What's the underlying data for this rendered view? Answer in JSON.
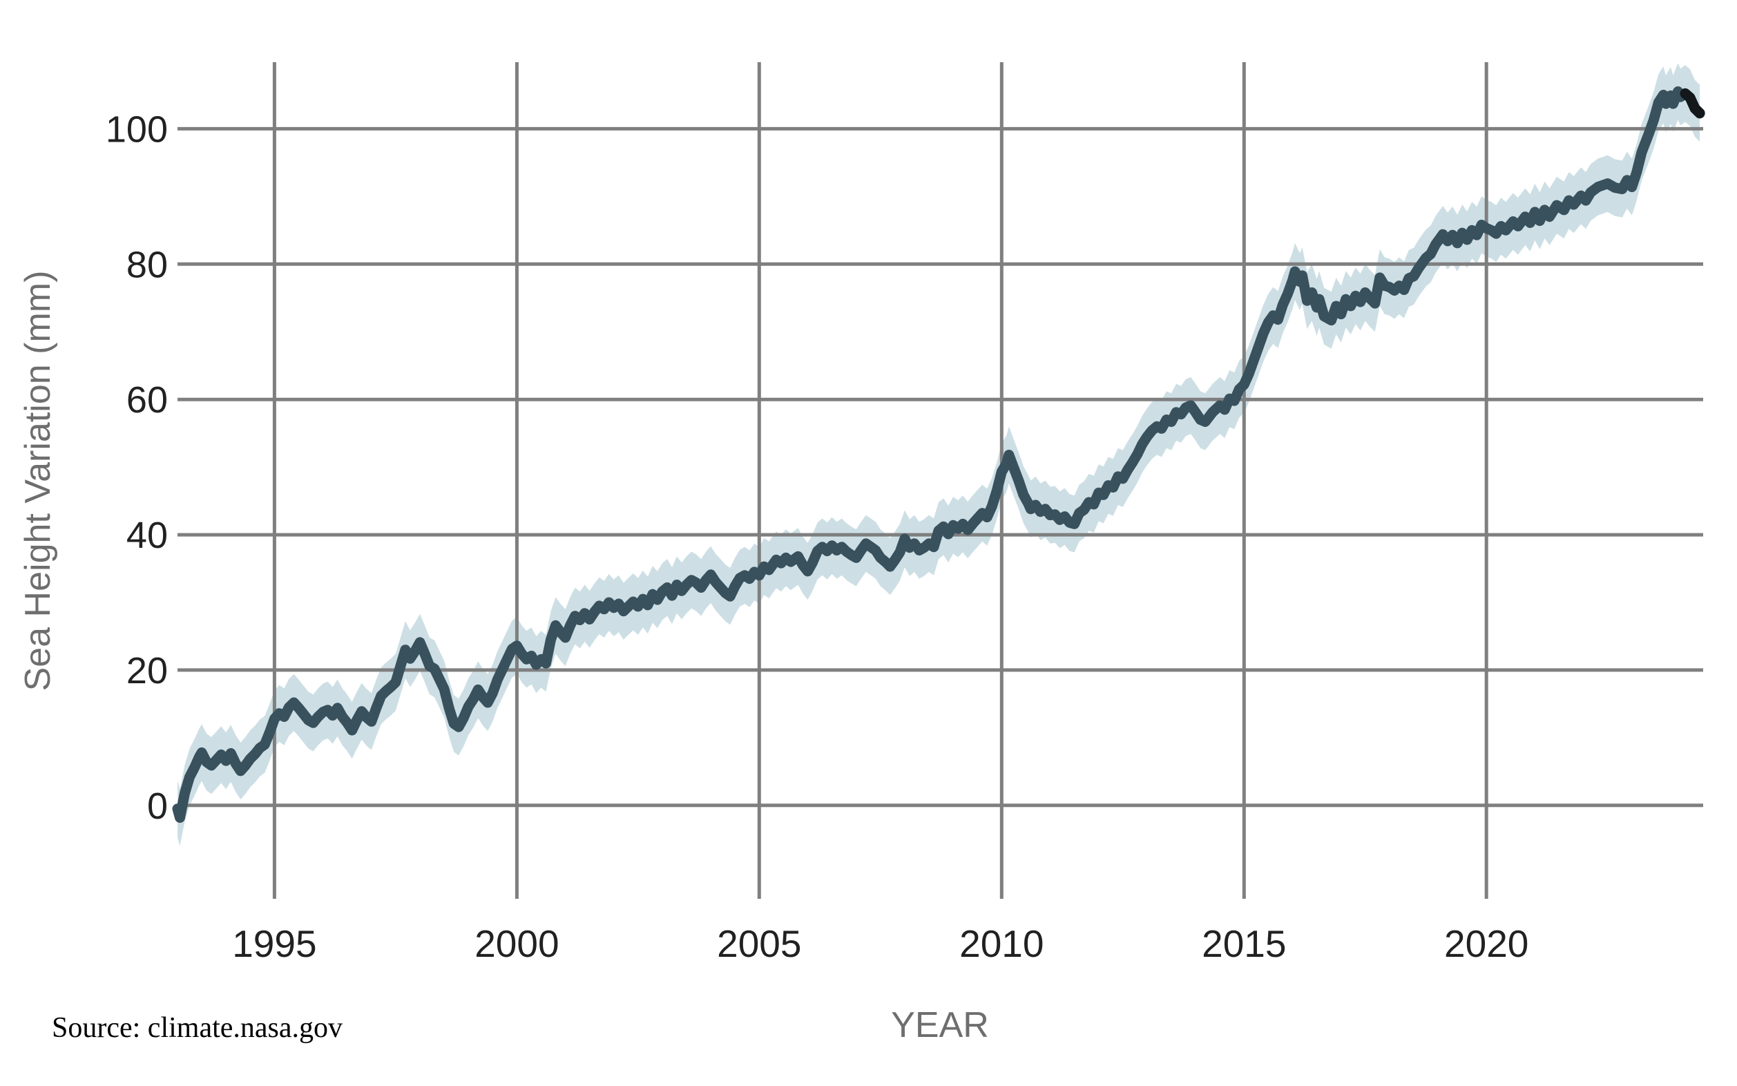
{
  "chart_data": {
    "type": "line",
    "title": "",
    "xlabel": "YEAR",
    "ylabel": "Sea Height Variation (mm)",
    "source_text": "Source: climate.nasa.gov",
    "grid": true,
    "legend": "none",
    "xlim": [
      1993.0,
      2024.47
    ],
    "ylim": [
      -13.8,
      109.84
    ],
    "x_ticks": [
      1995,
      2000,
      2005,
      2010,
      2015,
      2020
    ],
    "x_tick_labels": [
      "1995",
      "2000",
      "2005",
      "2010",
      "2015",
      "2020"
    ],
    "y_ticks": [
      0,
      20,
      40,
      60,
      80,
      100
    ],
    "y_tick_labels": [
      "0",
      "20",
      "40",
      "60",
      "80",
      "100"
    ],
    "band_halfwidth": 4.2,
    "end_segment_points": 4,
    "colors": {
      "line": "#38515d",
      "line_end": "#14181b",
      "band": "#cddfe5",
      "grid": "#7f7f7f",
      "tick_label": "#212121",
      "axis_label": "#6e6e6e",
      "source": "#000000",
      "background": "#ffffff"
    },
    "series": [
      {
        "name": "Sea Height Variation",
        "x": [
          1993.0,
          1993.05,
          1993.15,
          1993.25,
          1993.35,
          1993.45,
          1993.5,
          1993.6,
          1993.7,
          1993.8,
          1993.9,
          1994.0,
          1994.1,
          1994.2,
          1994.3,
          1994.4,
          1994.5,
          1994.6,
          1994.7,
          1994.8,
          1994.9,
          1995.0,
          1995.1,
          1995.2,
          1995.3,
          1995.4,
          1995.5,
          1995.6,
          1995.7,
          1995.8,
          1995.9,
          1996.0,
          1996.1,
          1996.2,
          1996.3,
          1996.4,
          1996.5,
          1996.6,
          1996.7,
          1996.8,
          1996.9,
          1997.0,
          1997.1,
          1997.2,
          1997.3,
          1997.4,
          1997.5,
          1997.6,
          1997.7,
          1997.8,
          1997.9,
          1998.0,
          1998.1,
          1998.2,
          1998.3,
          1998.4,
          1998.5,
          1998.6,
          1998.7,
          1998.8,
          1998.9,
          1999.0,
          1999.1,
          1999.2,
          1999.3,
          1999.4,
          1999.5,
          1999.6,
          1999.7,
          1999.8,
          1999.9,
          2000.0,
          2000.1,
          2000.2,
          2000.3,
          2000.4,
          2000.5,
          2000.6,
          2000.7,
          2000.8,
          2000.9,
          2001.0,
          2001.1,
          2001.2,
          2001.3,
          2001.4,
          2001.5,
          2001.6,
          2001.7,
          2001.8,
          2001.9,
          2002.0,
          2002.1,
          2002.2,
          2002.3,
          2002.4,
          2002.5,
          2002.6,
          2002.7,
          2002.8,
          2002.9,
          2003.0,
          2003.1,
          2003.2,
          2003.3,
          2003.4,
          2003.5,
          2003.6,
          2003.7,
          2003.8,
          2003.9,
          2004.0,
          2004.1,
          2004.2,
          2004.3,
          2004.4,
          2004.5,
          2004.6,
          2004.7,
          2004.8,
          2004.9,
          2005.0,
          2005.1,
          2005.2,
          2005.35,
          2005.45,
          2005.55,
          2005.65,
          2005.8,
          2005.9,
          2006.0,
          2006.1,
          2006.2,
          2006.3,
          2006.4,
          2006.5,
          2006.6,
          2006.7,
          2006.8,
          2006.9,
          2007.0,
          2007.1,
          2007.2,
          2007.3,
          2007.4,
          2007.5,
          2007.6,
          2007.7,
          2007.8,
          2007.9,
          2008.0,
          2008.1,
          2008.2,
          2008.3,
          2008.4,
          2008.5,
          2008.6,
          2008.7,
          2008.8,
          2008.9,
          2009.0,
          2009.1,
          2009.2,
          2009.3,
          2009.4,
          2009.5,
          2009.6,
          2009.7,
          2009.8,
          2009.9,
          2010.0,
          2010.1,
          2010.15,
          2010.25,
          2010.35,
          2010.45,
          2010.55,
          2010.6,
          2010.7,
          2010.8,
          2010.9,
          2011.0,
          2011.1,
          2011.2,
          2011.3,
          2011.4,
          2011.5,
          2011.6,
          2011.7,
          2011.8,
          2011.9,
          2012.0,
          2012.1,
          2012.2,
          2012.3,
          2012.4,
          2012.5,
          2012.6,
          2012.7,
          2012.8,
          2012.9,
          2013.0,
          2013.1,
          2013.2,
          2013.3,
          2013.4,
          2013.5,
          2013.6,
          2013.7,
          2013.8,
          2013.9,
          2014.0,
          2014.1,
          2014.2,
          2014.35,
          2014.5,
          2014.6,
          2014.7,
          2014.8,
          2014.9,
          2015.0,
          2015.1,
          2015.2,
          2015.3,
          2015.4,
          2015.5,
          2015.6,
          2015.7,
          2015.8,
          2015.9,
          2016.0,
          2016.05,
          2016.15,
          2016.2,
          2016.3,
          2016.4,
          2016.5,
          2016.55,
          2016.65,
          2016.8,
          2016.9,
          2017.0,
          2017.1,
          2017.2,
          2017.3,
          2017.4,
          2017.5,
          2017.6,
          2017.7,
          2017.8,
          2017.9,
          2018.0,
          2018.1,
          2018.2,
          2018.3,
          2018.4,
          2018.5,
          2018.6,
          2018.75,
          2018.85,
          2018.95,
          2019.1,
          2019.2,
          2019.3,
          2019.4,
          2019.5,
          2019.6,
          2019.7,
          2019.8,
          2019.9,
          2020.0,
          2020.1,
          2020.2,
          2020.3,
          2020.4,
          2020.55,
          2020.65,
          2020.8,
          2020.9,
          2021.0,
          2021.1,
          2021.2,
          2021.3,
          2021.45,
          2021.6,
          2021.7,
          2021.8,
          2021.95,
          2022.05,
          2022.15,
          2022.3,
          2022.5,
          2022.65,
          2022.8,
          2022.9,
          2023.0,
          2023.1,
          2023.2,
          2023.35,
          2023.45,
          2023.55,
          2023.65,
          2023.7,
          2023.8,
          2023.85,
          2023.95,
          2024.0,
          2024.1,
          2024.2,
          2024.3,
          2024.4
        ],
        "y": [
          -0.5,
          -1.8,
          1.8,
          4.2,
          5.6,
          7.2,
          7.8,
          6.4,
          5.9,
          6.7,
          7.5,
          6.6,
          7.7,
          6.2,
          5.1,
          5.9,
          6.9,
          7.6,
          8.5,
          9.0,
          10.8,
          12.8,
          13.6,
          13.1,
          14.5,
          15.2,
          14.4,
          13.5,
          12.6,
          12.2,
          13.1,
          13.8,
          14.1,
          13.3,
          14.4,
          13.1,
          12.2,
          11.1,
          12.6,
          13.9,
          13.0,
          12.4,
          14.4,
          16.2,
          16.9,
          17.5,
          18.2,
          20.6,
          23.0,
          21.7,
          22.8,
          24.1,
          22.4,
          20.6,
          20.2,
          18.7,
          17.2,
          14.4,
          12.1,
          11.6,
          12.9,
          14.6,
          15.7,
          17.1,
          16.0,
          15.2,
          16.6,
          18.6,
          20.1,
          21.6,
          23.1,
          23.6,
          22.4,
          21.6,
          22.1,
          20.8,
          21.6,
          21.0,
          24.5,
          26.6,
          25.6,
          24.8,
          26.6,
          28.0,
          27.4,
          28.4,
          27.5,
          28.6,
          29.5,
          29.0,
          30.0,
          29.2,
          29.8,
          28.7,
          29.4,
          30.1,
          29.4,
          30.5,
          29.6,
          31.2,
          30.4,
          31.6,
          32.2,
          31.0,
          32.6,
          31.7,
          32.6,
          33.3,
          32.9,
          32.2,
          33.3,
          34.1,
          33.0,
          32.2,
          31.4,
          30.9,
          32.4,
          33.6,
          34.0,
          33.5,
          34.5,
          34.0,
          35.3,
          34.8,
          36.3,
          35.8,
          36.6,
          36.0,
          36.8,
          35.5,
          34.6,
          35.9,
          37.6,
          38.2,
          37.6,
          38.4,
          37.7,
          38.2,
          37.5,
          37.0,
          36.6,
          37.7,
          38.7,
          38.2,
          37.7,
          36.6,
          36.0,
          35.3,
          36.3,
          37.4,
          39.4,
          38.1,
          38.7,
          37.7,
          38.1,
          38.7,
          38.2,
          40.6,
          41.2,
          40.1,
          41.4,
          40.9,
          41.6,
          40.7,
          41.6,
          42.4,
          43.2,
          42.6,
          44.2,
          46.5,
          49.3,
          50.5,
          51.8,
          49.9,
          48.0,
          45.9,
          44.6,
          43.8,
          44.4,
          43.4,
          43.8,
          42.9,
          43.0,
          42.2,
          42.7,
          41.8,
          41.6,
          43.2,
          43.7,
          44.8,
          44.5,
          46.2,
          45.9,
          47.3,
          47.0,
          48.6,
          48.3,
          49.6,
          50.7,
          51.9,
          53.4,
          54.5,
          55.4,
          56.0,
          55.7,
          57.0,
          56.7,
          58.1,
          57.8,
          58.8,
          59.1,
          58.1,
          57.0,
          56.7,
          58.1,
          59.1,
          58.5,
          60.1,
          59.8,
          61.5,
          62.2,
          63.8,
          65.8,
          67.8,
          69.8,
          71.4,
          72.4,
          71.8,
          74.0,
          75.6,
          77.6,
          78.9,
          77.4,
          78.3,
          74.6,
          75.8,
          73.6,
          74.8,
          72.3,
          71.7,
          73.8,
          72.6,
          74.8,
          73.8,
          75.3,
          74.4,
          75.8,
          74.9,
          74.2,
          78.0,
          76.8,
          76.6,
          76.1,
          76.8,
          76.2,
          77.9,
          78.2,
          79.4,
          80.9,
          81.5,
          82.9,
          84.4,
          83.4,
          84.3,
          83.1,
          84.6,
          83.6,
          85.0,
          84.3,
          85.8,
          85.3,
          85.0,
          84.5,
          85.6,
          85.0,
          86.3,
          85.6,
          87.0,
          86.1,
          87.7,
          86.4,
          88.0,
          87.0,
          88.7,
          88.0,
          89.4,
          88.8,
          90.1,
          89.4,
          90.6,
          91.4,
          91.9,
          91.3,
          91.1,
          92.4,
          91.4,
          93.6,
          96.5,
          99.3,
          101.3,
          103.9,
          105.0,
          103.7,
          104.9,
          103.7,
          105.5,
          104.7,
          105.2,
          104.6,
          103.0,
          102.3
        ]
      }
    ]
  }
}
